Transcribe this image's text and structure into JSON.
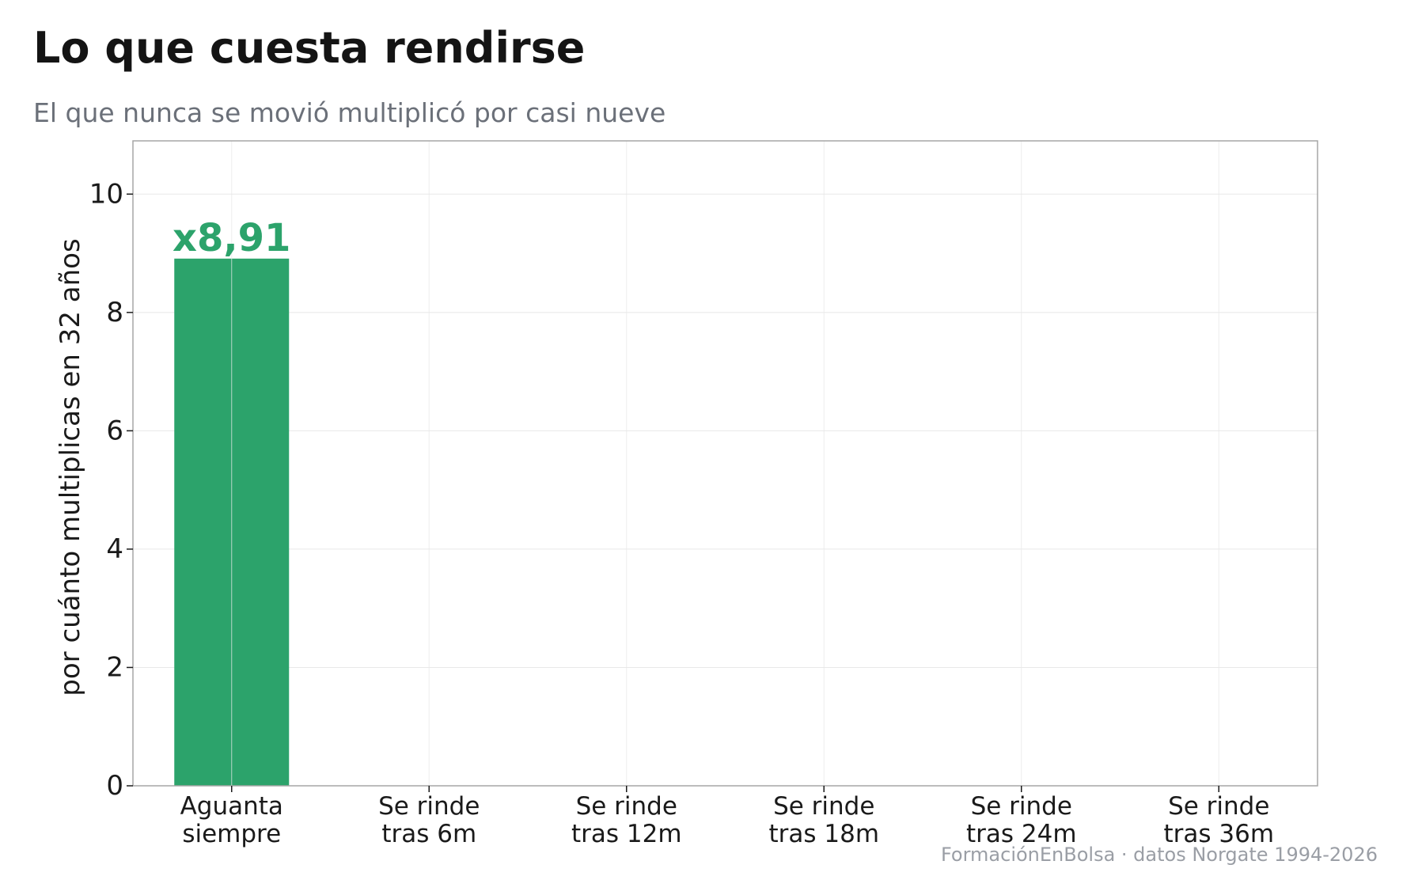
{
  "title": "Lo que cuesta rendirse",
  "subtitle": "El que nunca se movió multiplicó por casi nueve",
  "source": "FormaciónEnBolsa · datos Norgate 1994-2026",
  "colors": {
    "bar": "#2ca36b",
    "label": "#2ca36b",
    "grid": "#e8e8e8",
    "frame": "#a6a6a6",
    "text": "#1a1a1a"
  },
  "chart_data": {
    "type": "bar",
    "categories": [
      [
        "Aguanta",
        "siempre"
      ],
      [
        "Se rinde",
        "tras 6m"
      ],
      [
        "Se rinde",
        "tras 12m"
      ],
      [
        "Se rinde",
        "tras 18m"
      ],
      [
        "Se rinde",
        "tras 24m"
      ],
      [
        "Se rinde",
        "tras 36m"
      ]
    ],
    "values": [
      8.91,
      null,
      null,
      null,
      null,
      null
    ],
    "data_labels": [
      "x8,91",
      "",
      "",
      "",
      "",
      ""
    ],
    "ylabel": "por cuánto multiplicas en 32 años",
    "ylim": [
      0,
      10.9
    ],
    "yticks": [
      0,
      2,
      4,
      6,
      8,
      10
    ],
    "grid": true
  }
}
